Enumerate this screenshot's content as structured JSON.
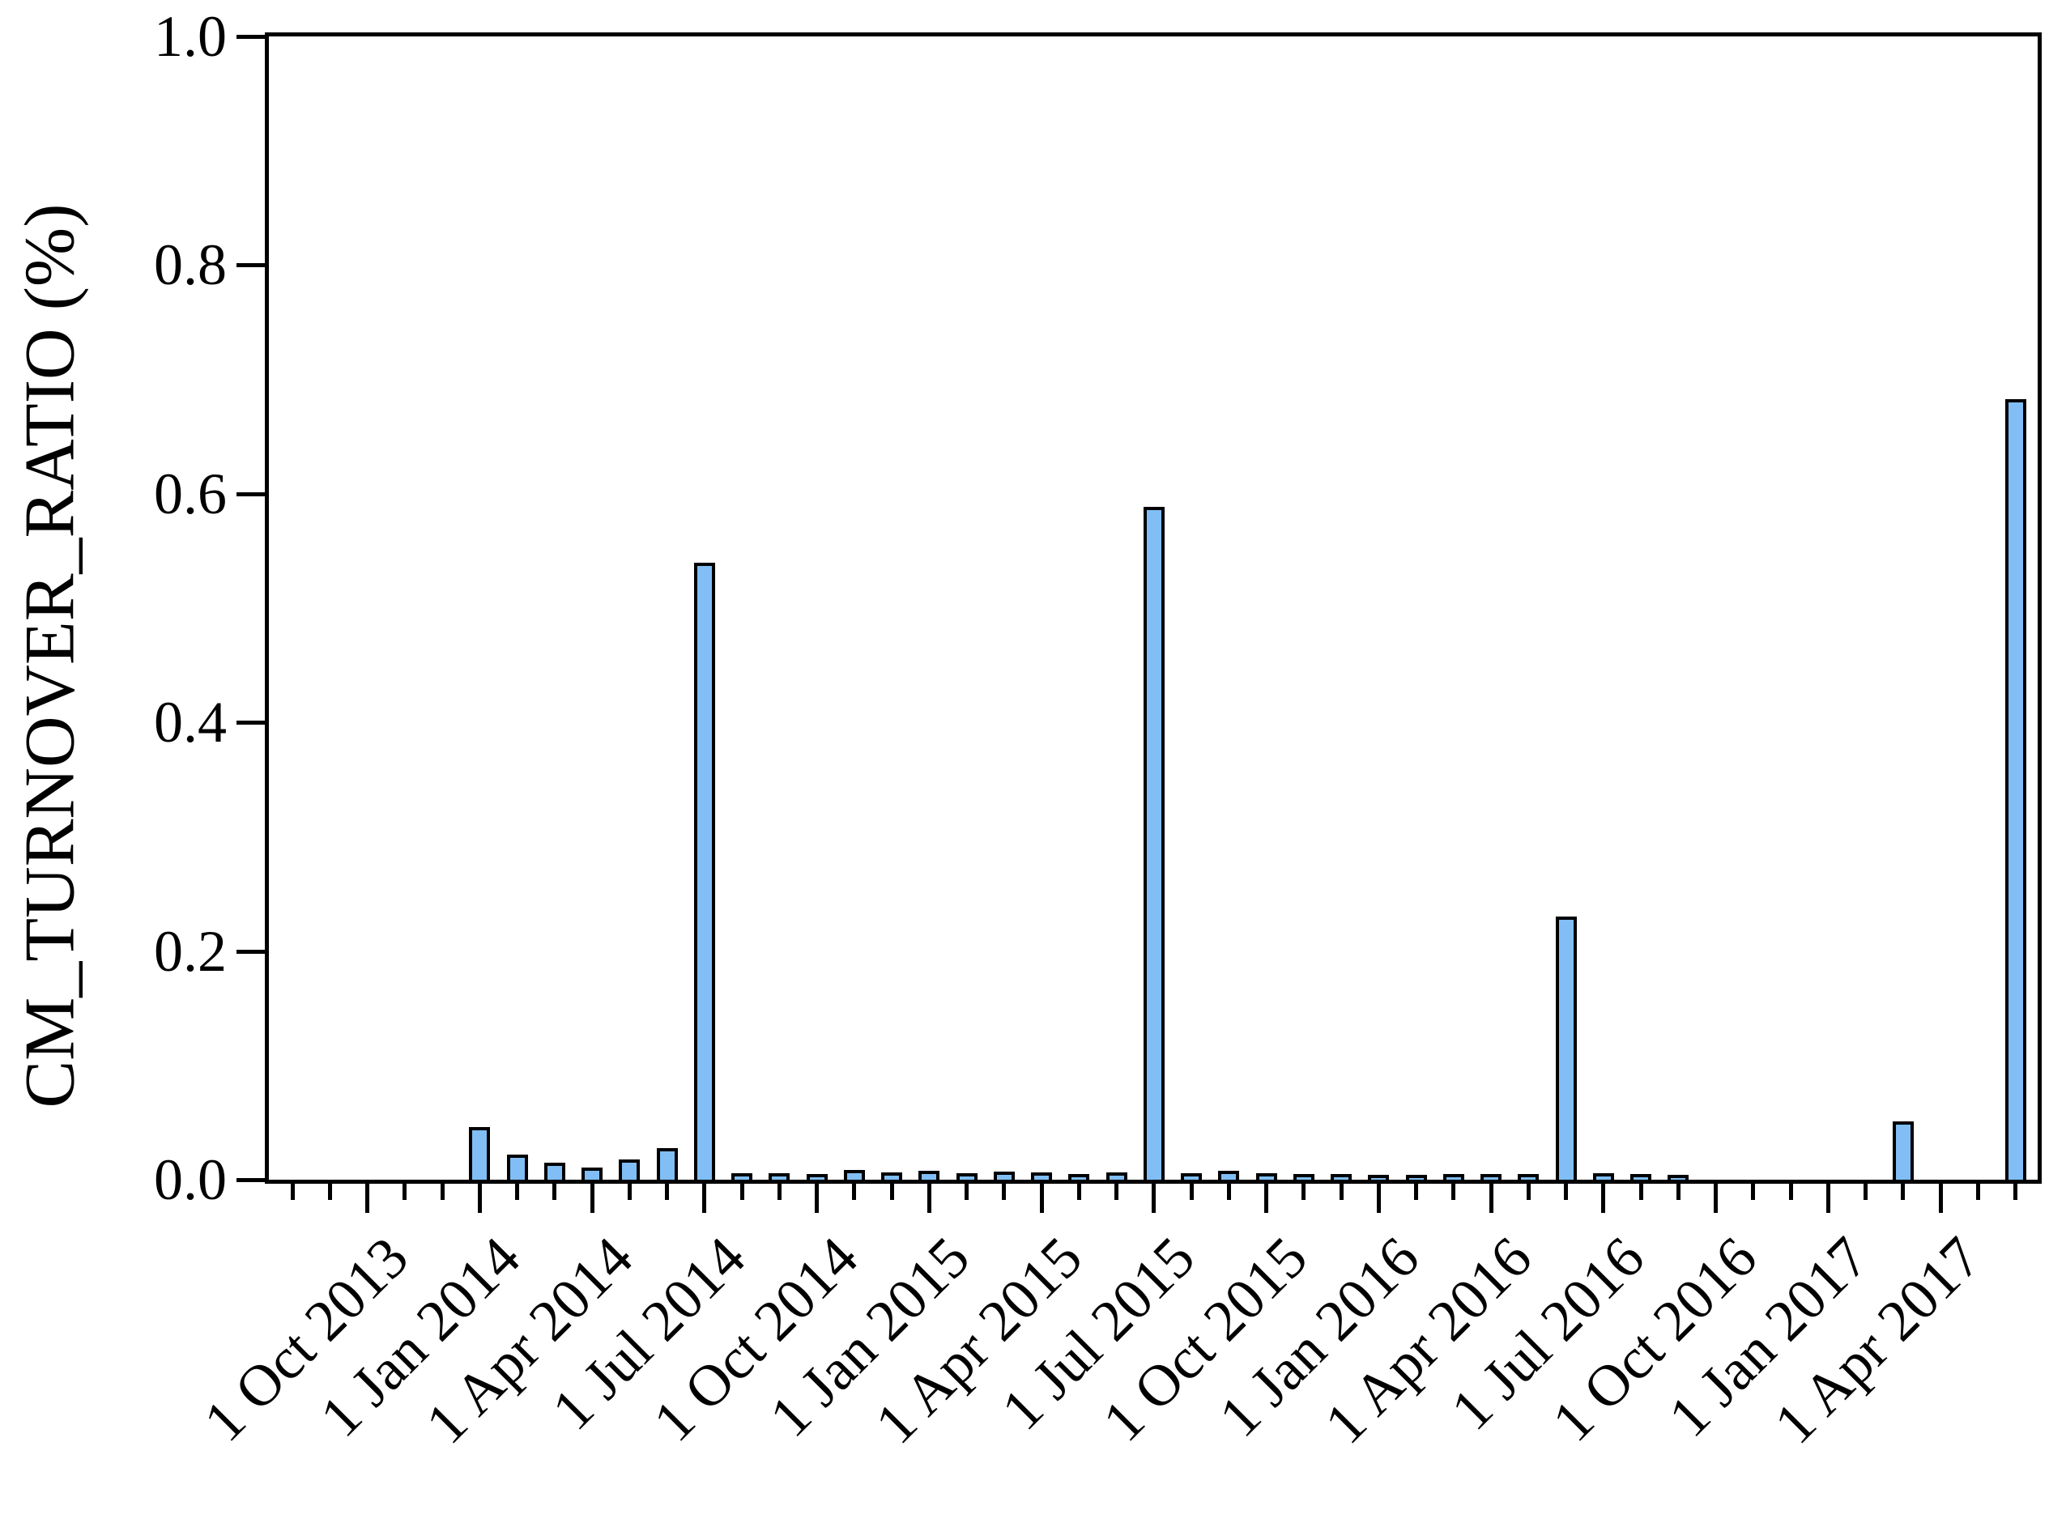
{
  "figure": {
    "background_color": "#ffffff",
    "spine_color": "#000000"
  },
  "chart_data": {
    "type": "bar",
    "title": "",
    "xlabel": "",
    "ylabel": "CM_TURNOVER_RATIO (%)",
    "ylim": [
      0.0,
      1.0
    ],
    "grid": false,
    "legend_position": "none",
    "bar_color": "#80BEF5",
    "bar_edge_color": "#000000",
    "ytick_labels": [
      "0.0",
      "0.2",
      "0.4",
      "0.6",
      "0.8",
      "1.0"
    ],
    "ytick_values": [
      0.0,
      0.2,
      0.4,
      0.6,
      0.8,
      1.0
    ],
    "x_minor_tick_unit": "month",
    "x_major_tick_every_months": 3,
    "x_major_tick_labels": [
      "1 Oct 2013",
      "1 Jan 2014",
      "1 Apr 2014",
      "1 Jul 2014",
      "1 Oct 2014",
      "1 Jan 2015",
      "1 Apr 2015",
      "1 Jul 2015",
      "1 Oct 2015",
      "1 Jan 2016",
      "1 Apr 2016",
      "1 Jul 2016",
      "1 Oct 2016",
      "1 Jan 2017",
      "1 Apr 2017"
    ],
    "categories": [
      "Oct 2013",
      "Nov 2013",
      "Dec 2013",
      "Jan 2014",
      "Feb 2014",
      "Mar 2014",
      "Apr 2014",
      "May 2014",
      "Jun 2014",
      "Jul 2014",
      "Aug 2014",
      "Sep 2014",
      "Oct 2014",
      "Nov 2014",
      "Dec 2014",
      "Jan 2015",
      "Feb 2015",
      "Mar 2015",
      "Apr 2015",
      "May 2015",
      "Jun 2015",
      "Jul 2015",
      "Aug 2015",
      "Sep 2015",
      "Oct 2015",
      "Nov 2015",
      "Dec 2015",
      "Jan 2016",
      "Feb 2016",
      "Mar 2016",
      "Apr 2016",
      "May 2016",
      "Jun 2016",
      "Jul 2016",
      "Aug 2016",
      "Sep 2016",
      "Oct 2016",
      "Nov 2016",
      "Dec 2016",
      "Jan 2017",
      "Feb 2017",
      "Mar 2017",
      "Apr 2017",
      "May 2017",
      "Jun 2017"
    ],
    "values": [
      0,
      0,
      0,
      0.043,
      0.019,
      0.012,
      0.008,
      0.015,
      0.025,
      0.537,
      0.003,
      0.003,
      0.002,
      0.006,
      0.0035,
      0.005,
      0.003,
      0.0045,
      0.0035,
      0.002,
      0.0035,
      0.586,
      0.0025,
      0.005,
      0.003,
      0.002,
      0.002,
      0.001,
      0.0015,
      0.002,
      0.002,
      0.002,
      0.227,
      0.0025,
      0.002,
      0.0015,
      0,
      0,
      0,
      0,
      0,
      0.048,
      0,
      0,
      0.68
    ]
  }
}
